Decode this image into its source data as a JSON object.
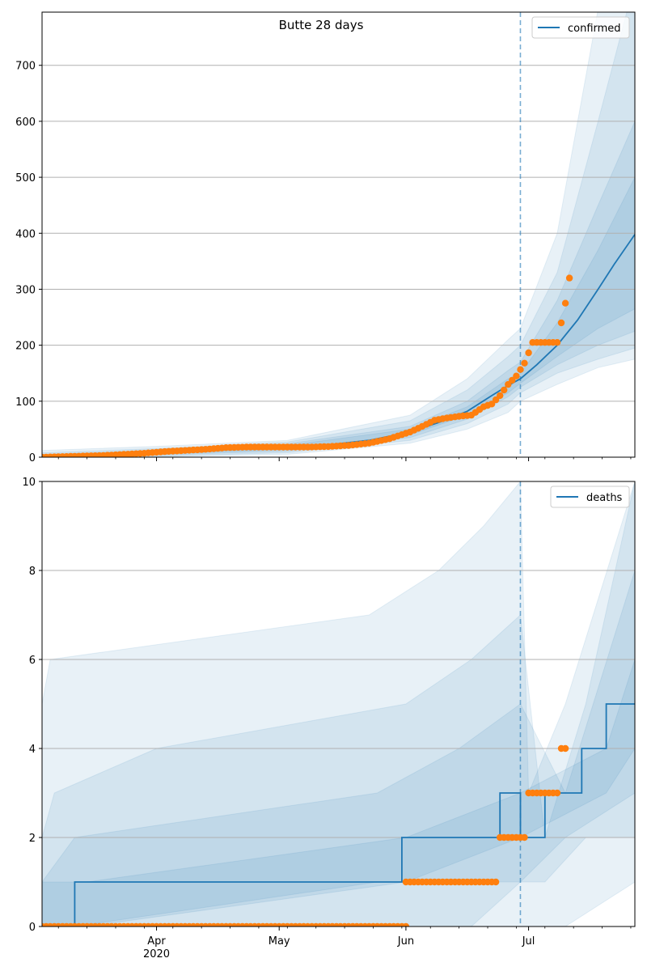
{
  "chart_data": [
    {
      "type": "line",
      "title": "Butte 28 days",
      "xlabel": "",
      "ylabel": "",
      "legend": {
        "label": "confirmed",
        "placement": "top-right"
      },
      "x_range": [
        "2020-03-04",
        "2020-07-27"
      ],
      "ylim": [
        0,
        795
      ],
      "y_ticks": [
        0,
        100,
        200,
        300,
        400,
        500,
        600,
        700
      ],
      "grid": "horizontal",
      "forecast_start": "2020-06-29",
      "colors": {
        "model": "#1f77b4",
        "observed": "#ff7f0e",
        "band": "#1f77b4",
        "grid": "#b0b0b0"
      },
      "model": {
        "x": [
          "2020-03-04",
          "2020-03-14",
          "2020-03-24",
          "2020-04-03",
          "2020-04-13",
          "2020-04-23",
          "2020-05-03",
          "2020-05-13",
          "2020-05-23",
          "2020-06-02",
          "2020-06-09",
          "2020-06-16",
          "2020-06-22",
          "2020-06-26",
          "2020-06-29",
          "2020-07-03",
          "2020-07-08",
          "2020-07-13",
          "2020-07-18",
          "2020-07-22",
          "2020-07-27"
        ],
        "values": [
          1,
          3,
          6,
          9,
          12,
          15,
          18,
          22,
          30,
          45,
          62,
          82,
          110,
          128,
          140,
          165,
          200,
          245,
          300,
          345,
          398
        ]
      },
      "bands": [
        {
          "name": "",
          "x": [
            "2020-03-04",
            "2020-04-03",
            "2020-05-03",
            "2020-06-02",
            "2020-06-16",
            "2020-06-26",
            "2020-06-29",
            "2020-07-08",
            "2020-07-18",
            "2020-07-27"
          ],
          "upper": [
            12,
            20,
            30,
            75,
            140,
            210,
            230,
            400,
            800,
            1100
          ],
          "lower": [
            0,
            1,
            5,
            25,
            50,
            80,
            100,
            130,
            160,
            175
          ]
        },
        {
          "name": "",
          "x": [
            "2020-03-04",
            "2020-04-03",
            "2020-05-03",
            "2020-06-02",
            "2020-06-16",
            "2020-06-26",
            "2020-06-29",
            "2020-07-08",
            "2020-07-18",
            "2020-07-27"
          ],
          "upper": [
            8,
            16,
            27,
            65,
            120,
            180,
            200,
            330,
            600,
            850
          ],
          "lower": [
            0,
            2,
            8,
            30,
            60,
            95,
            115,
            150,
            175,
            195
          ]
        },
        {
          "name": "",
          "x": [
            "2020-03-04",
            "2020-04-03",
            "2020-05-03",
            "2020-06-02",
            "2020-06-16",
            "2020-06-26",
            "2020-06-29",
            "2020-07-08",
            "2020-07-18",
            "2020-07-27"
          ],
          "upper": [
            5,
            13,
            24,
            55,
            100,
            155,
            170,
            280,
            450,
            600
          ],
          "lower": [
            0,
            4,
            11,
            35,
            68,
            108,
            125,
            165,
            200,
            225
          ]
        },
        {
          "name": "",
          "x": [
            "2020-03-04",
            "2020-04-03",
            "2020-05-03",
            "2020-06-02",
            "2020-06-16",
            "2020-06-26",
            "2020-06-29",
            "2020-07-08",
            "2020-07-18",
            "2020-07-27"
          ],
          "upper": [
            3,
            11,
            21,
            50,
            90,
            140,
            150,
            240,
            370,
            500
          ],
          "lower": [
            0,
            6,
            14,
            40,
            75,
            115,
            132,
            180,
            230,
            265
          ]
        }
      ],
      "observed": {
        "x": [
          "2020-03-04",
          "2020-03-09",
          "2020-03-14",
          "2020-03-19",
          "2020-03-24",
          "2020-03-29",
          "2020-04-03",
          "2020-04-08",
          "2020-04-13",
          "2020-04-18",
          "2020-04-23",
          "2020-04-28",
          "2020-05-03",
          "2020-05-08",
          "2020-05-13",
          "2020-05-18",
          "2020-05-23",
          "2020-05-28",
          "2020-06-02",
          "2020-06-05",
          "2020-06-08",
          "2020-06-11",
          "2020-06-14",
          "2020-06-17",
          "2020-06-20",
          "2020-06-22",
          "2020-06-24",
          "2020-06-26",
          "2020-06-28",
          "2020-06-30",
          "2020-07-02",
          "2020-07-04",
          "2020-07-06",
          "2020-07-08",
          "2020-07-10",
          "2020-07-11"
        ],
        "values": [
          0,
          1,
          2,
          3,
          5,
          7,
          10,
          12,
          14,
          17,
          18,
          18,
          18,
          18,
          19,
          21,
          25,
          33,
          45,
          55,
          66,
          70,
          73,
          75,
          90,
          95,
          110,
          130,
          145,
          168,
          205,
          205,
          205,
          205,
          275,
          320
        ]
      }
    },
    {
      "type": "line",
      "title": "",
      "xlabel": "",
      "ylabel": "",
      "legend": {
        "label": "deaths",
        "placement": "top-right"
      },
      "x_range": [
        "2020-03-04",
        "2020-07-27"
      ],
      "ylim": [
        0,
        10
      ],
      "y_ticks": [
        0,
        2,
        4,
        6,
        8,
        10
      ],
      "x_ticks": [
        "Apr\n2020",
        "May",
        "Jun",
        "Jul"
      ],
      "grid": "horizontal",
      "forecast_start": "2020-06-29",
      "model": {
        "x": [
          "2020-03-04",
          "2020-03-12",
          "2020-03-12",
          "2020-05-31",
          "2020-05-31",
          "2020-06-24",
          "2020-06-24",
          "2020-06-29",
          "2020-06-29",
          "2020-07-05",
          "2020-07-05",
          "2020-07-14",
          "2020-07-14",
          "2020-07-20",
          "2020-07-20",
          "2020-07-27"
        ],
        "values": [
          0,
          0,
          1,
          1,
          2,
          2,
          3,
          3,
          2,
          2,
          3,
          3,
          4,
          4,
          5,
          5
        ]
      },
      "bands": [
        {
          "name": "",
          "x": [
            "2020-03-04",
            "2020-03-06",
            "2020-05-23",
            "2020-06-09",
            "2020-06-20",
            "2020-06-29",
            "2020-07-01",
            "2020-07-10",
            "2020-07-27"
          ],
          "upper": [
            5,
            6,
            7,
            8,
            9,
            10,
            3,
            5,
            10
          ],
          "lower": [
            0,
            0,
            0,
            0,
            0,
            0,
            0,
            0,
            1
          ]
        },
        {
          "name": "",
          "x": [
            "2020-03-04",
            "2020-03-07",
            "2020-04-01",
            "2020-06-01",
            "2020-06-17",
            "2020-06-29",
            "2020-07-05",
            "2020-07-15",
            "2020-07-27"
          ],
          "upper": [
            2,
            3,
            4,
            5,
            6,
            7,
            2,
            5,
            10
          ],
          "lower": [
            0,
            0,
            0,
            0,
            0,
            1,
            1,
            2,
            2
          ]
        },
        {
          "name": "",
          "x": [
            "2020-03-04",
            "2020-03-12",
            "2020-05-25",
            "2020-06-14",
            "2020-06-29",
            "2020-07-10",
            "2020-07-27"
          ],
          "upper": [
            1,
            2,
            3,
            4,
            5,
            3,
            8
          ],
          "lower": [
            0,
            0,
            1,
            1,
            1,
            2,
            3
          ]
        },
        {
          "name": "",
          "x": [
            "2020-03-04",
            "2020-03-15",
            "2020-06-01",
            "2020-06-29",
            "2020-07-20",
            "2020-07-27"
          ],
          "upper": [
            1,
            1,
            2,
            3,
            4,
            6
          ],
          "lower": [
            0,
            0,
            1,
            2,
            3,
            4
          ]
        }
      ],
      "observed": {
        "x": [
          "2020-03-04",
          "2020-03-20",
          "2020-04-10",
          "2020-05-01",
          "2020-05-20",
          "2020-06-01",
          "2020-06-01",
          "2020-06-12",
          "2020-06-23",
          "2020-06-24",
          "2020-06-28",
          "2020-07-01",
          "2020-07-05",
          "2020-07-08",
          "2020-07-09",
          "2020-07-10"
        ],
        "values": [
          0,
          0,
          0,
          0,
          0,
          0,
          1,
          1,
          1,
          2,
          2,
          3,
          3,
          3,
          4,
          4
        ]
      }
    }
  ]
}
